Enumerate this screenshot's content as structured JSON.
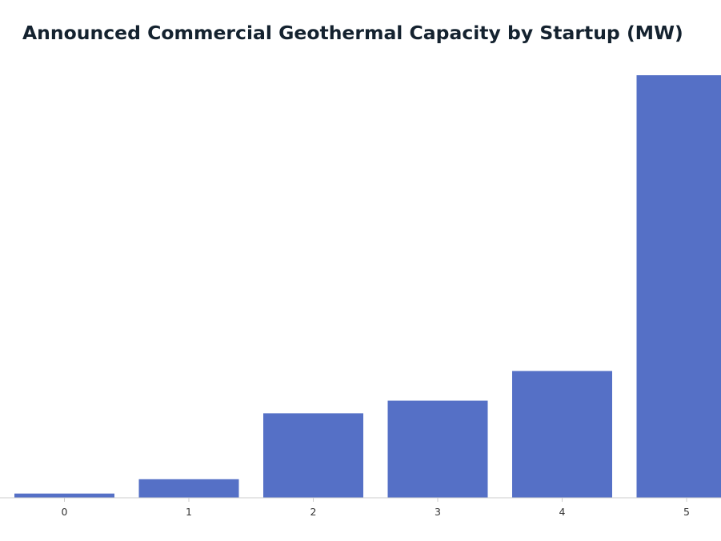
{
  "chart_data": {
    "type": "bar",
    "title": "Announced Commercial Geothermal Capacity by Startup (MW)",
    "xlabel": "",
    "ylabel": "",
    "categories": [
      "0",
      "1",
      "2",
      "3",
      "4",
      "5"
    ],
    "values": [
      5,
      22,
      100,
      115,
      150,
      500
    ],
    "ylim": [
      0,
      500
    ],
    "grid": false,
    "legend": "none",
    "colors": {
      "bar": "#5570c6",
      "axis": "#cccccc",
      "title": "#14222f",
      "tick_text": "#333333"
    }
  }
}
